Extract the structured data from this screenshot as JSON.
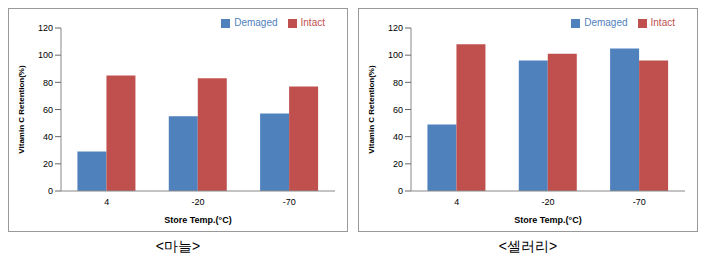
{
  "chart_data": [
    {
      "type": "bar",
      "title": "<마늘>",
      "x_label": "Store Temp.(°C)",
      "y_label": "Vitamin C Retention(%)",
      "categories": [
        "4",
        "-20",
        "-70"
      ],
      "series": [
        {
          "name": "Demaged",
          "color": "#4f81bd",
          "values": [
            29,
            55,
            57
          ]
        },
        {
          "name": "Intact",
          "color": "#c0504d",
          "values": [
            85,
            83,
            77
          ]
        }
      ],
      "ylim": [
        0,
        120
      ],
      "yticks": [
        0,
        20,
        40,
        60,
        80,
        100,
        120
      ],
      "legend": "top right"
    },
    {
      "type": "bar",
      "title": "<셀러리>",
      "x_label": "Store Temp.(°C)",
      "y_label": "Vitamin C Retention(%)",
      "categories": [
        "4",
        "-20",
        "-70"
      ],
      "series": [
        {
          "name": "Demaged",
          "color": "#4f81bd",
          "values": [
            49,
            96,
            105
          ]
        },
        {
          "name": "Intact",
          "color": "#c0504d",
          "values": [
            108,
            101,
            96
          ]
        }
      ],
      "ylim": [
        0,
        120
      ],
      "yticks": [
        0,
        20,
        40,
        60,
        80,
        100,
        120
      ],
      "legend": "top right"
    }
  ]
}
